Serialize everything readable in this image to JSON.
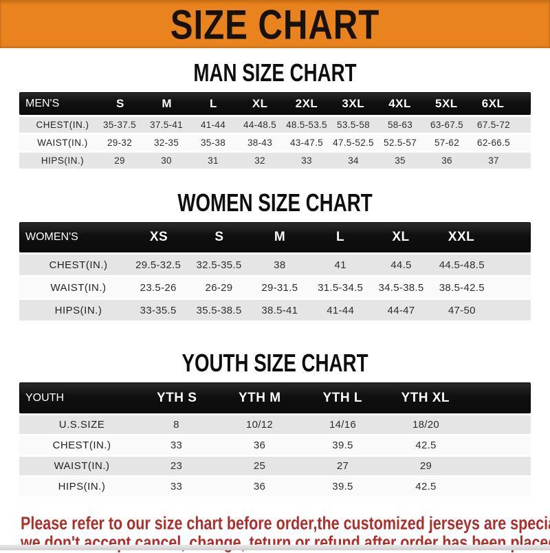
{
  "banner": {
    "title": "SIZE CHART",
    "bg_color": "#E8831D",
    "text_color": "#17120C"
  },
  "sections": [
    {
      "id": "men",
      "title": "MAN SIZE CHART",
      "header": {
        "label": "MEN'S",
        "columns": [
          "S",
          "M",
          "L",
          "XL",
          "2XL",
          "3XL",
          "4XL",
          "5XL",
          "6XL"
        ]
      },
      "rows": [
        {
          "label": "CHEST(IN.)",
          "values": [
            "35-37.5",
            "37.5-41",
            "41-44",
            "44-48.5",
            "48.5-53.5",
            "53.5-58",
            "58-63",
            "63-67.5",
            "67.5-72"
          ]
        },
        {
          "label": "WAIST(IN.)",
          "values": [
            "29-32",
            "32-35",
            "35-38",
            "38-43",
            "43-47.5",
            "47.5-52.5",
            "52.5-57",
            "57-62",
            "62-66.5"
          ]
        },
        {
          "label": "HIPS(IN.)",
          "values": [
            "29",
            "30",
            "31",
            "32",
            "33",
            "34",
            "35",
            "36",
            "37"
          ]
        }
      ]
    },
    {
      "id": "women",
      "title": "WOMEN SIZE CHART",
      "header": {
        "label": "WOMEN'S",
        "columns": [
          "XS",
          "S",
          "M",
          "L",
          "XL",
          "XXL"
        ]
      },
      "rows": [
        {
          "label": "CHEST(IN.)",
          "values": [
            "29.5-32.5",
            "32.5-35.5",
            "38",
            "41",
            "44.5",
            "44.5-48.5"
          ]
        },
        {
          "label": "WAIST(IN.)",
          "values": [
            "23.5-26",
            "26-29",
            "29-31.5",
            "31.5-34.5",
            "34.5-38.5",
            "38.5-42.5"
          ]
        },
        {
          "label": "HIPS(IN.)",
          "values": [
            "33-35.5",
            "35.5-38.5",
            "38.5-41",
            "41-44",
            "44-47",
            "47-50"
          ]
        }
      ]
    },
    {
      "id": "youth",
      "title": "YOUTH SIZE CHART",
      "header": {
        "label": "YOUTH",
        "columns": [
          "YTH S",
          "YTH M",
          "YTH L",
          "YTH XL"
        ]
      },
      "rows": [
        {
          "label": "U.S.SIZE",
          "values": [
            "8",
            "10/12",
            "14/16",
            "18/20"
          ]
        },
        {
          "label": "CHEST(IN.)",
          "values": [
            "33",
            "36",
            "39.5",
            "42.5"
          ]
        },
        {
          "label": "WAIST(IN.)",
          "values": [
            "23",
            "25",
            "27",
            "29"
          ]
        },
        {
          "label": "HIPS(IN.)",
          "values": [
            "33",
            "36",
            "39.5",
            "42.5"
          ]
        }
      ]
    }
  ],
  "footer": {
    "text_color": "#AC2F2B",
    "lines": [
      "Please refer to our size chart before order,the customized jerseys are special products,",
      "we don't accept cancel, change, teturn or refund after order has been placed!"
    ]
  }
}
